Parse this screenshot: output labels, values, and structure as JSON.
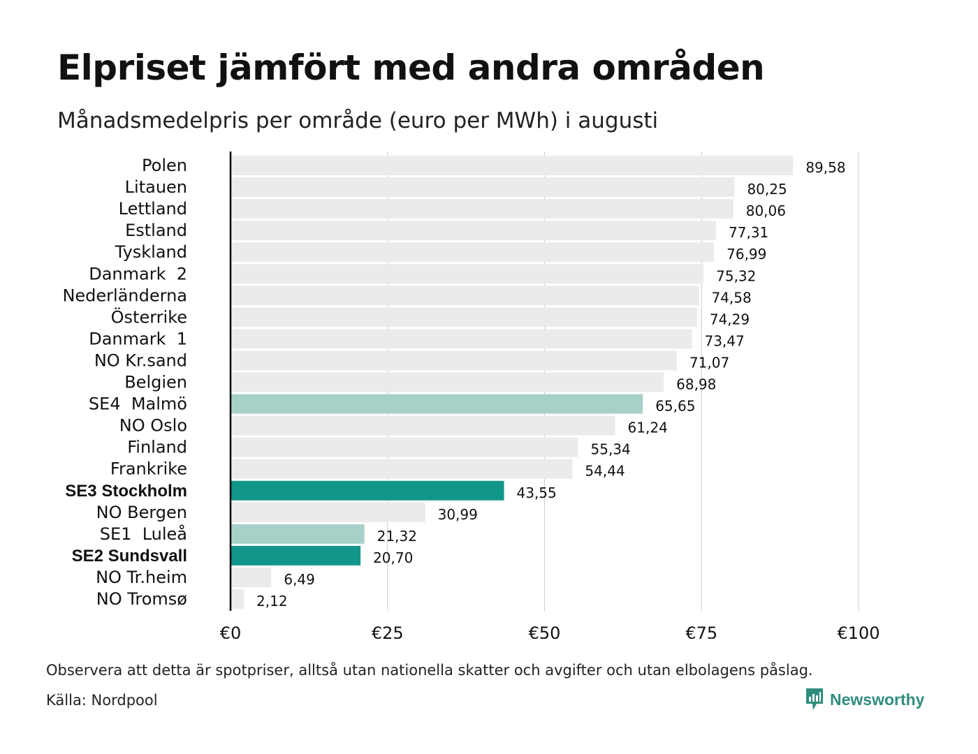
{
  "title": "Elpriset jämfört med andra områden",
  "subtitle": "Månadsmedelpris per område (euro per MWh) i augusti",
  "note": "Observera att detta är spotpriser, alltså utan nationella skatter och avgifter och utan elbolagens påslag.",
  "source": "Källa: Nordpool",
  "brand": {
    "name": "Newsworthy",
    "icon": "newsworthy-logo-icon",
    "color": "#2f8d7e"
  },
  "colors": {
    "default": "#ebebeb",
    "highlight": "#13968a",
    "light_highlight": "#a7d0c9",
    "grid": "#cccccc",
    "axis": "#000000"
  },
  "chart_data": {
    "type": "bar",
    "orientation": "horizontal",
    "categories": [
      "Polen",
      "Litauen",
      "Lettland",
      "Estland",
      "Tyskland",
      "Danmark  2",
      "Nederländerna",
      "Österrike",
      "Danmark  1",
      "NO Kr.sand",
      "Belgien",
      "SE4  Malmö",
      "NO Oslo",
      "Finland",
      "Frankrike",
      "SE3 Stockholm",
      "NO Bergen",
      "SE1  Luleå",
      "SE2 Sundsvall",
      "NO Tr.heim",
      "NO Tromsø"
    ],
    "values": [
      89.58,
      80.25,
      80.06,
      77.31,
      76.99,
      75.32,
      74.58,
      74.29,
      73.47,
      71.07,
      68.98,
      65.65,
      61.24,
      55.34,
      54.44,
      43.55,
      30.99,
      21.32,
      20.7,
      6.49,
      2.12
    ],
    "value_labels": [
      "89,58",
      "80,25",
      "80,06",
      "77,31",
      "76,99",
      "75,32",
      "74,58",
      "74,29",
      "73,47",
      "71,07",
      "68,98",
      "65,65",
      "61,24",
      "55,34",
      "54,44",
      "43,55",
      "30,99",
      "21,32",
      "20,70",
      "6,49",
      "2,12"
    ],
    "highlight": [
      "default",
      "default",
      "default",
      "default",
      "default",
      "default",
      "default",
      "default",
      "default",
      "default",
      "default",
      "light",
      "default",
      "default",
      "default",
      "strong",
      "default",
      "light",
      "strong",
      "default",
      "default"
    ],
    "bold_labels": [
      false,
      false,
      false,
      false,
      false,
      false,
      false,
      false,
      false,
      false,
      false,
      false,
      false,
      false,
      false,
      true,
      false,
      false,
      true,
      false,
      false
    ],
    "xlim": [
      0,
      100
    ],
    "xticks": [
      0,
      25,
      50,
      75,
      100
    ],
    "xtick_labels": [
      "€0",
      "€25",
      "€50",
      "€75",
      "€100"
    ],
    "grid": true
  }
}
